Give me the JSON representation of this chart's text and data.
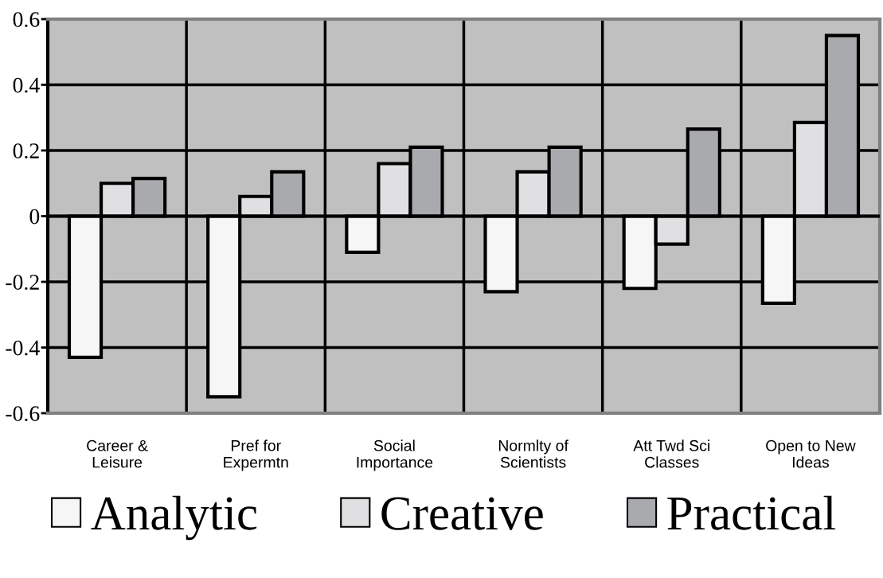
{
  "chart_data": {
    "type": "bar",
    "categories": [
      "Career &\nLeisure",
      "Pref for\nExpermtn",
      "Social\nImportance",
      "Normlty of\nScientists",
      "Att Twd Sci\nClasses",
      "Open to New\nIdeas"
    ],
    "series": [
      {
        "name": "Analytic",
        "color": "#f6f6f6",
        "values": [
          -0.43,
          -0.55,
          -0.11,
          -0.23,
          -0.22,
          -0.265
        ]
      },
      {
        "name": "Creative",
        "color": "#e0e0e2",
        "values": [
          0.1,
          0.06,
          0.16,
          0.135,
          -0.085,
          0.285
        ]
      },
      {
        "name": "Practical",
        "color": "#a9aaae",
        "values": [
          0.115,
          0.135,
          0.21,
          0.21,
          0.265,
          0.55
        ]
      }
    ],
    "ylim": [
      -0.6,
      0.6
    ],
    "yticks": [
      -0.6,
      -0.4,
      -0.2,
      0,
      0.2,
      0.4,
      0.6
    ],
    "grid": true,
    "legend": "bottom"
  }
}
